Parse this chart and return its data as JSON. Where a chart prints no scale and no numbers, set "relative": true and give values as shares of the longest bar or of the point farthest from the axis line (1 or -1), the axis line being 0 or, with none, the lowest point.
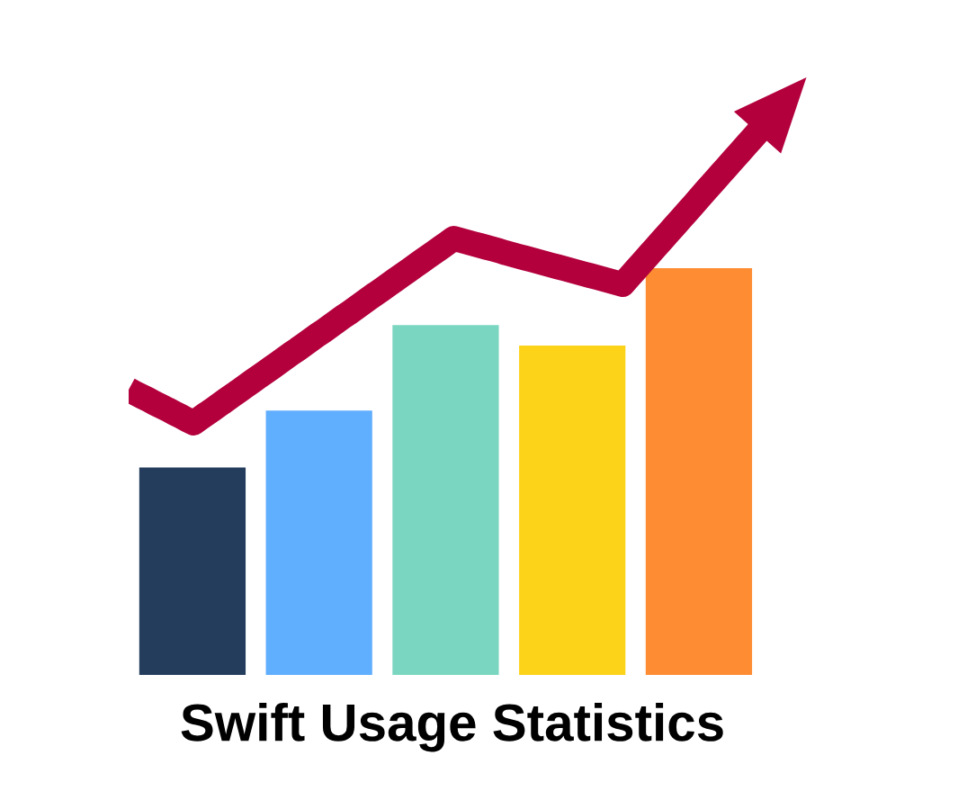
{
  "chart_data": [
    {
      "type": "bar",
      "title": "Swift Usage Statistics",
      "relative": true,
      "categories": [
        null,
        null,
        null,
        null,
        null
      ],
      "values": [
        0.51,
        0.65,
        0.86,
        0.81,
        1.0
      ],
      "colors": [
        "#243d5c",
        "#60aefe",
        "#7bd6c1",
        "#fdd31a",
        "#fd8c33"
      ]
    },
    {
      "type": "line",
      "relative": true,
      "color": "#b3003c",
      "categories": [
        null,
        null,
        null,
        null,
        null,
        null,
        null,
        null,
        null,
        null,
        null,
        null,
        null,
        null,
        null,
        null,
        null,
        null,
        null,
        null,
        null,
        null,
        null,
        null,
        null,
        null,
        null,
        null,
        null,
        null,
        null,
        null,
        null,
        null,
        null,
        null,
        null,
        null,
        null,
        null,
        null,
        null,
        null,
        null,
        null,
        null,
        null,
        null,
        null,
        null,
        null,
        null,
        null,
        null,
        null,
        null,
        null,
        null,
        null,
        null,
        null,
        null,
        null,
        null,
        null,
        null,
        null,
        null,
        null,
        null,
        null,
        null,
        null,
        null,
        null,
        null,
        null,
        null,
        null,
        null,
        null,
        null,
        null,
        null,
        null,
        null,
        null,
        null,
        null,
        null,
        null,
        null,
        null,
        null,
        null,
        null,
        null,
        null
      ],
      "values": [
        0.114,
        0.102,
        0.091,
        0.08,
        0.068,
        0.057,
        0.046,
        0.034,
        0.023,
        0.011,
        0.0,
        0.016,
        0.032,
        0.047,
        0.063,
        0.079,
        0.095,
        0.11,
        0.126,
        0.142,
        0.158,
        0.173,
        0.189,
        0.205,
        0.221,
        0.237,
        0.252,
        0.268,
        0.284,
        0.3,
        0.315,
        0.331,
        0.347,
        0.363,
        0.378,
        0.394,
        0.41,
        0.426,
        0.442,
        0.457,
        0.473,
        0.489,
        0.505,
        0.52,
        0.536,
        0.552,
        0.568,
        0.583,
        0.599,
        0.615,
        0.631,
        0.625,
        0.619,
        0.613,
        0.607,
        0.601,
        0.595,
        0.589,
        0.582,
        0.576,
        0.57,
        0.564,
        0.558,
        0.552,
        0.546,
        0.54,
        0.534,
        0.528,
        0.522,
        0.516,
        0.51,
        0.504,
        0.498,
        0.492,
        0.486,
        0.48,
        0.474,
        0.499,
        0.524,
        0.549,
        0.574,
        0.599,
        0.624,
        0.649,
        0.674,
        0.699,
        0.724,
        0.749,
        0.775,
        0.8,
        0.825,
        0.85,
        0.875,
        0.9,
        0.925,
        0.95,
        0.975,
        1.0
      ]
    }
  ]
}
